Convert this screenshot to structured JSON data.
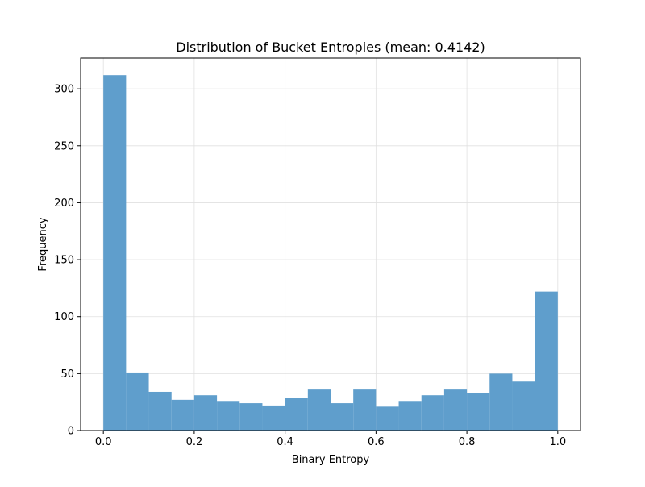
{
  "chart_data": {
    "type": "bar",
    "title": "Distribution of Bucket Entropies (mean: 0.4142)",
    "xlabel": "Binary Entropy",
    "ylabel": "Frequency",
    "xlim": [
      -0.05,
      1.05
    ],
    "ylim": [
      0,
      327
    ],
    "xticks": [
      0.0,
      0.2,
      0.4,
      0.6,
      0.8,
      1.0
    ],
    "xtick_labels": [
      "0.0",
      "0.2",
      "0.4",
      "0.6",
      "0.8",
      "1.0"
    ],
    "yticks": [
      0,
      50,
      100,
      150,
      200,
      250,
      300
    ],
    "ytick_labels": [
      "0",
      "50",
      "100",
      "150",
      "200",
      "250",
      "300"
    ],
    "grid": true,
    "bin_edges": [
      0.0,
      0.05,
      0.1,
      0.15,
      0.2,
      0.25,
      0.3,
      0.35,
      0.4,
      0.45,
      0.5,
      0.55,
      0.6,
      0.65,
      0.7,
      0.75,
      0.8,
      0.85,
      0.9,
      0.95,
      1.0
    ],
    "values": [
      312,
      51,
      34,
      27,
      31,
      26,
      24,
      22,
      29,
      36,
      24,
      36,
      21,
      26,
      31,
      36,
      33,
      50,
      43,
      122
    ],
    "bar_color": "#5f9ecc"
  }
}
